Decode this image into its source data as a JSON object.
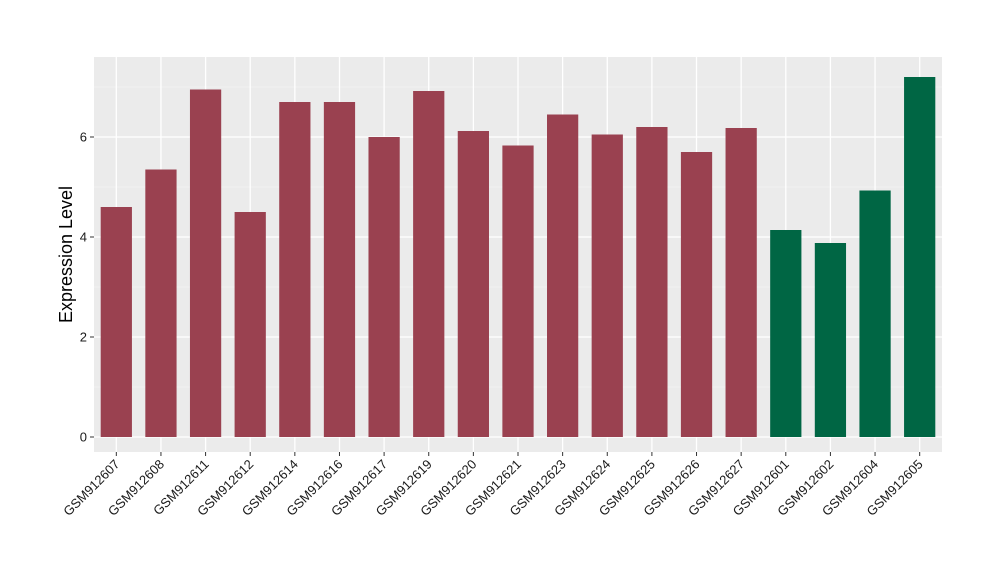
{
  "colors": {
    "panel_background": "#ebebeb",
    "grid_major": "#ffffff",
    "grid_minor": "#f5f5f5",
    "group_a": "#9a4150",
    "group_b": "#006644"
  },
  "chart_data": {
    "type": "bar",
    "title": "",
    "xlabel": "",
    "ylabel": "Expression Level",
    "ylim": [
      -0.3,
      7.6
    ],
    "yticks": [
      0,
      2,
      4,
      6
    ],
    "grid": true,
    "legend": "none",
    "categories": [
      "GSM912607",
      "GSM912608",
      "GSM912611",
      "GSM912612",
      "GSM912614",
      "GSM912616",
      "GSM912617",
      "GSM912619",
      "GSM912620",
      "GSM912621",
      "GSM912623",
      "GSM912624",
      "GSM912625",
      "GSM912626",
      "GSM912627",
      "GSM912601",
      "GSM912602",
      "GSM912604",
      "GSM912605"
    ],
    "values": [
      4.6,
      5.35,
      6.95,
      4.5,
      6.7,
      6.7,
      6.0,
      6.92,
      6.12,
      5.83,
      6.45,
      6.05,
      6.2,
      5.7,
      6.18,
      4.14,
      3.88,
      4.93,
      7.2
    ],
    "groups": [
      "a",
      "a",
      "a",
      "a",
      "a",
      "a",
      "a",
      "a",
      "a",
      "a",
      "a",
      "a",
      "a",
      "a",
      "a",
      "b",
      "b",
      "b",
      "b"
    ]
  }
}
